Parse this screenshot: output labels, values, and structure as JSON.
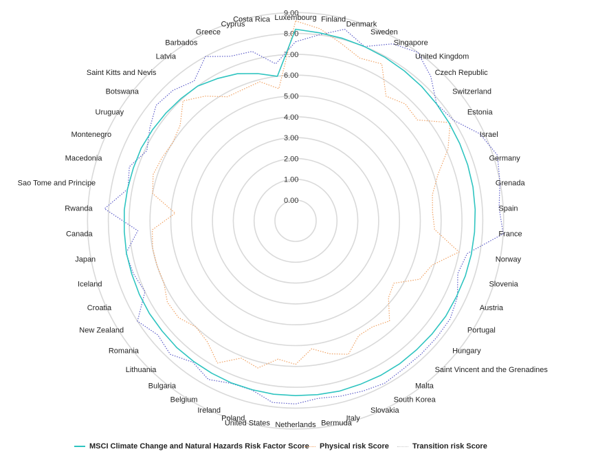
{
  "chart_data": {
    "type": "radar",
    "ticks": [
      "0.00",
      "1.00",
      "2.00",
      "3.00",
      "4.00",
      "5.00",
      "6.00",
      "7.00",
      "8.00",
      "9.00"
    ],
    "rmax": 9,
    "categories": [
      "Luxembourg",
      "Finland",
      "Denmark",
      "Sweden",
      "Singapore",
      "United Kingdom",
      "Czech Republic",
      "Switzerland",
      "Estonia",
      "Israel",
      "Germany",
      "Grenada",
      "Spain",
      "France",
      "Norway",
      "Slovenia",
      "Austria",
      "Portugal",
      "Hungary",
      "Saint Vincent and the Grenadines",
      "Malta",
      "South Korea",
      "Slovakia",
      "Italy",
      "Bermuda",
      "Netherlands",
      "United States",
      "Poland",
      "Ireland",
      "Belgium",
      "Bulgaria",
      "Lithuania",
      "Romania",
      "New Zealand",
      "Croatia",
      "Iceland",
      "Japan",
      "Canada",
      "Rwanda",
      "Sao Tome and Principe",
      "Macedonia",
      "Montenegro",
      "Uruguay",
      "Botswana",
      "Saint Kitts and Nevis",
      "Latvia",
      "Barbados",
      "Greece",
      "Cyprus",
      "Costa Rica"
    ],
    "series": [
      {
        "name": "MSCI Climate Change and Natural Hazards Risk Factor Score",
        "color": "#2ec4c0",
        "style": "solid",
        "values": [
          8.2,
          8.1,
          8.05,
          8.0,
          7.95,
          7.9,
          7.85,
          7.8,
          7.75,
          7.72,
          7.7,
          7.68,
          7.65,
          7.62,
          7.6,
          7.58,
          7.55,
          7.55,
          7.52,
          7.5,
          7.5,
          7.48,
          7.45,
          7.45,
          7.42,
          7.4,
          7.4,
          7.38,
          7.38,
          7.36,
          7.35,
          7.35,
          7.32,
          7.32,
          7.3,
          7.28,
          7.28,
          7.25,
          7.25,
          7.22,
          7.2,
          7.2,
          7.15,
          7.1,
          7.05,
          7.0,
          6.8,
          6.6,
          6.3,
          6.0
        ]
      },
      {
        "name": "Physical risk Score",
        "color": "#f0a060",
        "style": "dotted",
        "values": [
          8.6,
          8.3,
          7.8,
          7.4,
          7.6,
          6.4,
          6.7,
          6.6,
          7.8,
          7.1,
          6.2,
          5.7,
          5.6,
          5.7,
          7.0,
          5.9,
          5.6,
          4.6,
          4.8,
          5.6,
          5.3,
          5.3,
          5.9,
          5.6,
          5.2,
          5.9,
          5.7,
          6.3,
          6.1,
          6.8,
          6.2,
          6.0,
          6.3,
          6.3,
          6.0,
          6.0,
          6.0,
          5.9,
          4.8,
          6.0,
          6.2,
          6.1,
          6.0,
          6.2,
          6.9,
          6.4,
          5.8,
          5.8,
          5.9,
          5.4
        ]
      },
      {
        "name": "Transition risk Score",
        "color": "#5a5ac8",
        "style": "dotted",
        "values": [
          7.6,
          8.0,
          8.5,
          8.0,
          8.7,
          9.0,
          8.5,
          7.8,
          8.0,
          8.8,
          9.2,
          9.0,
          8.8,
          9.0,
          7.4,
          7.2,
          7.6,
          7.8,
          7.8,
          7.8,
          7.8,
          7.9,
          7.8,
          7.7,
          7.6,
          7.8,
          7.8,
          7.4,
          7.4,
          7.7,
          7.4,
          7.8,
          7.6,
          8.0,
          7.0,
          7.2,
          7.3,
          6.6,
          8.2,
          7.2,
          7.4,
          6.9,
          7.3,
          7.7,
          7.6,
          7.3,
          8.0,
          7.5,
          7.4,
          6.6
        ]
      }
    ]
  },
  "legend": [
    {
      "label": "MSCI Climate Change and Natural Hazards Risk Factor Score"
    },
    {
      "label": "Physical risk Score"
    },
    {
      "label": "Transition risk Score"
    }
  ]
}
